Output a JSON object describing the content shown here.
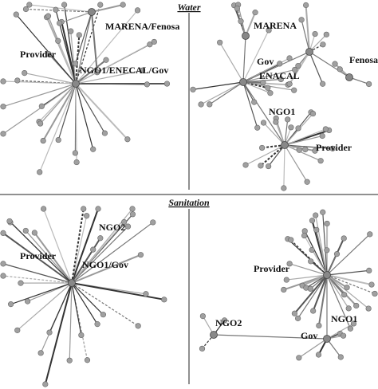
{
  "sections": [
    {
      "title": "Water",
      "panels": [
        {
          "labels": [
            "MARENA/Fenosa",
            "Provider",
            "NGO1/ENECAL/Gov"
          ]
        },
        {
          "labels": [
            "MARENA",
            "Gov",
            "ENACAL",
            "Fenosa",
            "NGO1",
            "Provider"
          ]
        }
      ]
    },
    {
      "title": "Sanitation",
      "panels": [
        {
          "labels": [
            "NGO2",
            "Provider",
            "NGO1/Gov"
          ]
        },
        {
          "labels": [
            "Provider",
            "NGO2",
            "NGO1",
            "Gov"
          ]
        }
      ]
    }
  ]
}
